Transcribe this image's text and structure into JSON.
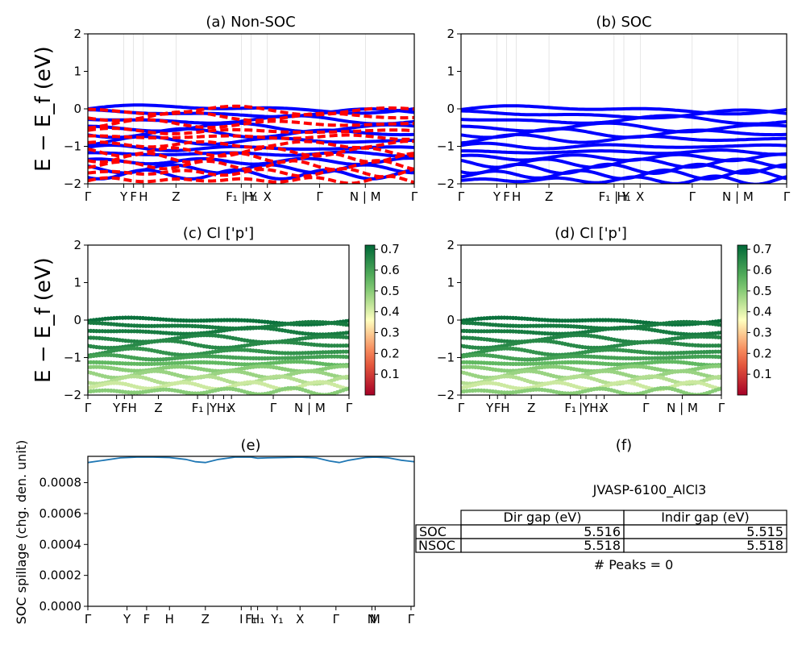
{
  "chart_data": [
    {
      "id": "a",
      "type": "line",
      "title": "(a) Non-SOC",
      "ylabel": "E − E_f (eV)",
      "ylim": [
        -2,
        2
      ],
      "yticks": [
        -2,
        -1,
        0,
        1,
        2
      ],
      "kpath_labels": [
        "Γ",
        "Y",
        "F",
        "H",
        "Z",
        "F₁ | Y",
        "H₁",
        "X",
        "Γ",
        "N | M",
        "Γ"
      ],
      "kpath_positions": [
        0,
        0.11,
        0.14,
        0.17,
        0.27,
        0.47,
        0.5,
        0.55,
        0.71,
        0.85,
        1.0
      ],
      "series": [
        {
          "color": "#0000ff",
          "bands_eV": [
            0.0,
            -0.12,
            -0.3,
            -0.5,
            -0.65,
            -0.85,
            -1.05,
            -1.2,
            -1.4,
            -1.6,
            -1.75
          ]
        },
        {
          "color": "#ff0000",
          "bands_eV": [
            -0.05,
            -0.2,
            -0.4,
            -0.6,
            -0.75,
            -0.95,
            -1.15,
            -1.3,
            -1.5,
            -1.7,
            -1.9
          ]
        }
      ]
    },
    {
      "id": "b",
      "type": "line",
      "title": "(b) SOC",
      "ylim": [
        -2,
        2
      ],
      "yticks": [
        -2,
        -1,
        0,
        1,
        2
      ],
      "kpath_labels": [
        "Γ",
        "Y",
        "F",
        "H",
        "Z",
        "F₁ | Y",
        "H₁",
        "X",
        "Γ",
        "N | M",
        "Γ"
      ],
      "kpath_positions": [
        0,
        0.11,
        0.14,
        0.17,
        0.27,
        0.47,
        0.5,
        0.55,
        0.71,
        0.85,
        1.0
      ],
      "series": [
        {
          "color": "#0000ff",
          "bands_eV": [
            -0.02,
            -0.15,
            -0.3,
            -0.5,
            -0.65,
            -0.8,
            -1.0,
            -1.15,
            -1.3,
            -1.45,
            -1.6,
            -1.75,
            -1.9
          ]
        }
      ]
    },
    {
      "id": "c",
      "type": "scatter",
      "title": "(c)  Cl ['p']",
      "ylabel": "E − E_f (eV)",
      "ylim": [
        -2,
        2
      ],
      "yticks": [
        -2,
        -1,
        0,
        1,
        2
      ],
      "kpath_labels": [
        "Γ",
        "Y",
        "F",
        "H",
        "Z",
        "F₁",
        "|",
        "Y",
        "H₁",
        "X",
        "Γ",
        "N | M",
        "Γ"
      ],
      "kpath_positions": [
        0,
        0.11,
        0.14,
        0.17,
        0.27,
        0.42,
        0.46,
        0.48,
        0.52,
        0.55,
        0.71,
        0.85,
        1.0
      ],
      "colorbar": {
        "cmap": "RdYlGn",
        "ticks": [
          0.1,
          0.2,
          0.3,
          0.4,
          0.5,
          0.6,
          0.7
        ],
        "min": 0.0,
        "max": 0.72
      },
      "series": [
        {
          "band_eV": -0.02,
          "weight": 0.7
        },
        {
          "band_eV": -0.15,
          "weight": 0.68
        },
        {
          "band_eV": -0.3,
          "weight": 0.68
        },
        {
          "band_eV": -0.5,
          "weight": 0.66
        },
        {
          "band_eV": -0.65,
          "weight": 0.65
        },
        {
          "band_eV": -0.85,
          "weight": 0.63
        },
        {
          "band_eV": -1.0,
          "weight": 0.6
        },
        {
          "band_eV": -1.15,
          "weight": 0.55
        },
        {
          "band_eV": -1.3,
          "weight": 0.5
        },
        {
          "band_eV": -1.45,
          "weight": 0.48
        },
        {
          "band_eV": -1.6,
          "weight": 0.45
        },
        {
          "band_eV": -1.75,
          "weight": 0.42
        },
        {
          "band_eV": -1.9,
          "weight": 0.5
        }
      ]
    },
    {
      "id": "d",
      "type": "scatter",
      "title": "(d) Cl ['p']",
      "ylim": [
        -2,
        2
      ],
      "yticks": [
        -2,
        -1,
        0,
        1,
        2
      ],
      "kpath_labels": [
        "Γ",
        "Y",
        "F",
        "H",
        "Z",
        "F₁",
        "|",
        "Y",
        "H₁",
        "X",
        "Γ",
        "N | M",
        "Γ"
      ],
      "kpath_positions": [
        0,
        0.11,
        0.14,
        0.17,
        0.27,
        0.42,
        0.46,
        0.48,
        0.52,
        0.55,
        0.71,
        0.85,
        1.0
      ],
      "colorbar": {
        "cmap": "RdYlGn",
        "ticks": [
          0.1,
          0.2,
          0.3,
          0.4,
          0.5,
          0.6,
          0.7
        ],
        "min": 0.0,
        "max": 0.72
      },
      "series": [
        {
          "band_eV": -0.02,
          "weight": 0.7
        },
        {
          "band_eV": -0.15,
          "weight": 0.68
        },
        {
          "band_eV": -0.3,
          "weight": 0.68
        },
        {
          "band_eV": -0.5,
          "weight": 0.66
        },
        {
          "band_eV": -0.65,
          "weight": 0.65
        },
        {
          "band_eV": -0.85,
          "weight": 0.63
        },
        {
          "band_eV": -1.0,
          "weight": 0.6
        },
        {
          "band_eV": -1.15,
          "weight": 0.55
        },
        {
          "band_eV": -1.3,
          "weight": 0.5
        },
        {
          "band_eV": -1.45,
          "weight": 0.48
        },
        {
          "band_eV": -1.6,
          "weight": 0.45
        },
        {
          "band_eV": -1.75,
          "weight": 0.42
        },
        {
          "band_eV": -1.9,
          "weight": 0.5
        }
      ]
    },
    {
      "id": "e",
      "type": "line",
      "title": "(e)",
      "ylabel": "SOC spillage (chg. den. unit)",
      "ylim": [
        0,
        0.00097
      ],
      "yticks": [
        0.0,
        0.0002,
        0.0004,
        0.0006,
        0.0008
      ],
      "ytick_labels": [
        "0.0000",
        "0.0002",
        "0.0004",
        "0.0006",
        "0.0008"
      ],
      "kpath_labels": [
        "Γ",
        "Y",
        "F",
        "H",
        "Z",
        "I",
        "F₁",
        "H₁",
        "Y₁",
        "X",
        "Γ",
        "N",
        "M",
        "Γ"
      ],
      "kpath_positions": [
        0,
        0.12,
        0.18,
        0.25,
        0.36,
        0.47,
        0.5,
        0.52,
        0.58,
        0.65,
        0.76,
        0.87,
        0.88,
        0.99
      ],
      "series": [
        {
          "color": "#1f77b4",
          "x": [
            0,
            0.05,
            0.1,
            0.15,
            0.2,
            0.25,
            0.3,
            0.33,
            0.36,
            0.4,
            0.45,
            0.5,
            0.52,
            0.55,
            0.6,
            0.65,
            0.7,
            0.74,
            0.77,
            0.8,
            0.85,
            0.88,
            0.92,
            0.96,
            1.0
          ],
          "y": [
            0.00093,
            0.000945,
            0.00096,
            0.000965,
            0.000965,
            0.000962,
            0.00095,
            0.000935,
            0.00093,
            0.00095,
            0.000965,
            0.000965,
            0.000958,
            0.00096,
            0.000962,
            0.000965,
            0.00096,
            0.00094,
            0.00093,
            0.000945,
            0.000962,
            0.000965,
            0.00096,
            0.000945,
            0.000935
          ]
        }
      ]
    }
  ],
  "panel_f": {
    "title": "(f)",
    "material": "JVASP-6100_AlCl3",
    "table": {
      "columns": [
        "Dir gap (eV)",
        "Indir gap (eV)"
      ],
      "rows": [
        {
          "label": "SOC",
          "dir": "5.516",
          "indir": "5.515"
        },
        {
          "label": "NSOC",
          "dir": "5.518",
          "indir": "5.518"
        }
      ]
    },
    "peaks": "# Peaks = 0"
  }
}
